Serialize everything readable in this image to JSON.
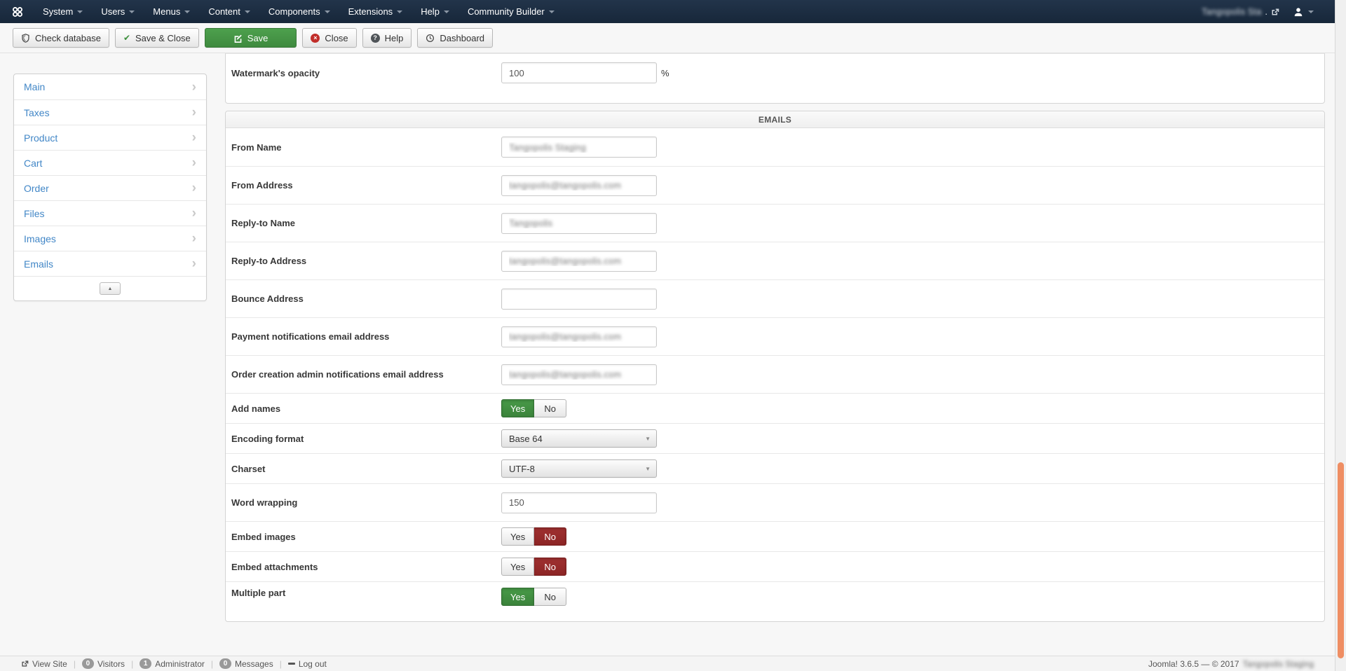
{
  "navbar": {
    "menus": [
      {
        "label": "System"
      },
      {
        "label": "Users"
      },
      {
        "label": "Menus"
      },
      {
        "label": "Content"
      },
      {
        "label": "Components"
      },
      {
        "label": "Extensions"
      },
      {
        "label": "Help"
      },
      {
        "label": "Community Builder"
      }
    ],
    "site_name": "Tangopolis Sta",
    "site_name_suffix": ".",
    "site_name_redacted": true
  },
  "toolbar": {
    "buttons": [
      {
        "label": "Check database",
        "icon": "shield-icon"
      },
      {
        "label": "Save & Close",
        "icon": "check-icon"
      },
      {
        "label": "Save",
        "icon": "edit-icon",
        "primary": true
      },
      {
        "label": "Close",
        "icon": "close-icon"
      },
      {
        "label": "Help",
        "icon": "help-icon"
      },
      {
        "label": "Dashboard",
        "icon": "dashboard-icon"
      }
    ]
  },
  "sidebar": {
    "items": [
      {
        "label": "Main"
      },
      {
        "label": "Taxes"
      },
      {
        "label": "Product"
      },
      {
        "label": "Cart"
      },
      {
        "label": "Order"
      },
      {
        "label": "Files"
      },
      {
        "label": "Images"
      },
      {
        "label": "Emails"
      }
    ]
  },
  "form": {
    "watermark": {
      "label": "Watermark's opacity",
      "value": "100",
      "suffix": "%"
    },
    "section_title": "EMAILS",
    "rows": [
      {
        "type": "text",
        "label": "From Name",
        "value": "Tangopolis Staging",
        "redacted": true
      },
      {
        "type": "text",
        "label": "From Address",
        "value": "tangopolis@tangopolis.com",
        "redacted": true
      },
      {
        "type": "text",
        "label": "Reply-to Name",
        "value": "Tangopolis",
        "redacted": true
      },
      {
        "type": "text",
        "label": "Reply-to Address",
        "value": "tangopolis@tangopolis.com",
        "redacted": true
      },
      {
        "type": "text",
        "label": "Bounce Address",
        "value": "",
        "redacted": false
      },
      {
        "type": "text",
        "label": "Payment notifications email address",
        "value": "tangopolis@tangopolis.com",
        "redacted": true
      },
      {
        "type": "text",
        "label": "Order creation admin notifications email address",
        "value": "tangopolis@tangopolis.com",
        "redacted": true
      },
      {
        "type": "toggle",
        "label": "Add names",
        "options": [
          "Yes",
          "No"
        ],
        "value": "Yes",
        "active_color": "green"
      },
      {
        "type": "select",
        "label": "Encoding format",
        "value": "Base 64"
      },
      {
        "type": "select",
        "label": "Charset",
        "value": "UTF-8"
      },
      {
        "type": "text",
        "label": "Word wrapping",
        "value": "150",
        "redacted": false
      },
      {
        "type": "toggle",
        "label": "Embed images",
        "options": [
          "Yes",
          "No"
        ],
        "value": "No",
        "active_color": "red"
      },
      {
        "type": "toggle",
        "label": "Embed attachments",
        "options": [
          "Yes",
          "No"
        ],
        "value": "No",
        "active_color": "red"
      },
      {
        "type": "toggle",
        "label": "Multiple part",
        "options": [
          "Yes",
          "No"
        ],
        "value": "Yes",
        "active_color": "green"
      }
    ]
  },
  "footer": {
    "view_site": "View Site",
    "visitors_count": "0",
    "visitors_label": "Visitors",
    "admin_count": "1",
    "admin_label": "Administrator",
    "messages_count": "0",
    "messages_label": "Messages",
    "logout": "Log out",
    "joomla_text": "Joomla! 3.6.5 — © 2017",
    "site_name": "Tangopolis Staging",
    "site_name_redacted": true
  },
  "glyphs": {
    "chevron_right": "›",
    "select_caret": "▼",
    "collapse_up": "▲",
    "separator": "|",
    "close_x": "×",
    "help_q": "?",
    "check": "✔"
  },
  "colors": {
    "navbar_bg": "#1c2d40",
    "accent_green": "#46a546",
    "accent_red": "#9d2b2b",
    "link_blue": "#4287c7",
    "scrollbar_thumb": "#ef8e63"
  }
}
